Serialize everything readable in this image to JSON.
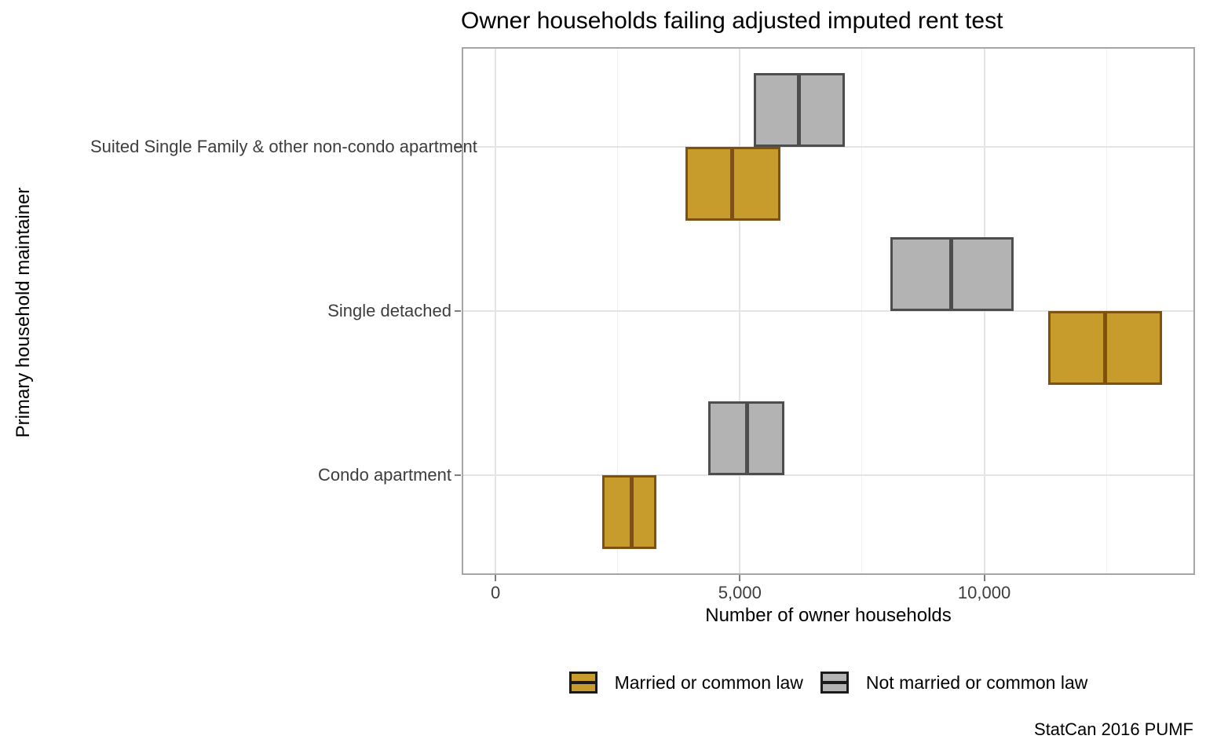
{
  "chart_data": {
    "type": "crossbar",
    "title": "Owner households failing adjusted imputed rent test",
    "xlabel": "Number of owner households",
    "ylabel": "Primary household maintainer",
    "caption": "StatCan 2016 PUMF",
    "xlim": [
      -660,
      14280
    ],
    "grid": "on",
    "legend_position": "bottom",
    "x_ticks": [
      {
        "value": 0,
        "label": "0"
      },
      {
        "value": 5000,
        "label": "5,000"
      },
      {
        "value": 10000,
        "label": "10,000"
      }
    ],
    "x_minor_ticks": [
      2500,
      7500,
      12500
    ],
    "categories": [
      "Suited Single Family & other non-condo apartment",
      "Single detached",
      "Condo apartment"
    ],
    "series": [
      {
        "name": "Married or common law",
        "fill": "#C89C2C",
        "stroke": "#7D5112",
        "dodge": "below",
        "values": [
          {
            "min": 3910,
            "mid": 4840,
            "max": 5800
          },
          {
            "min": 11330,
            "mid": 12470,
            "max": 13620
          },
          {
            "min": 2210,
            "mid": 2790,
            "max": 3270
          }
        ]
      },
      {
        "name": "Not married or common law",
        "fill": "#B3B3B3",
        "stroke": "#4D4D4D",
        "dodge": "above",
        "values": [
          {
            "min": 5300,
            "mid": 6200,
            "max": 7120
          },
          {
            "min": 8110,
            "mid": 9330,
            "max": 10580
          },
          {
            "min": 4380,
            "mid": 5140,
            "max": 5880
          }
        ]
      }
    ]
  }
}
